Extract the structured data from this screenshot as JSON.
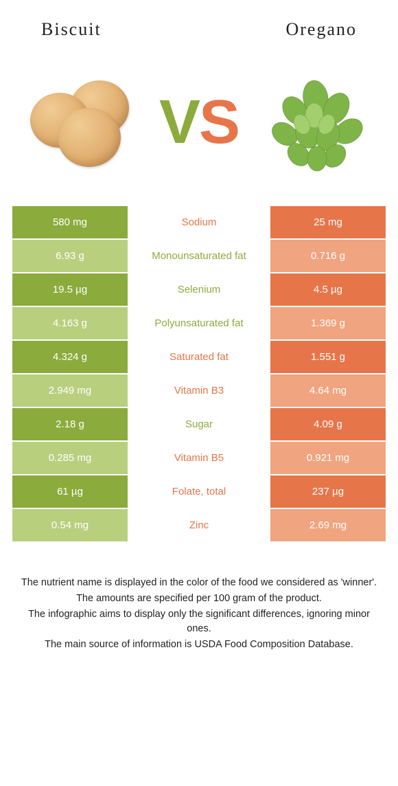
{
  "colors": {
    "green": "#8bab3c",
    "green_light": "#b8cf7e",
    "orange": "#e7754a",
    "orange_light": "#f0a47f",
    "white": "#ffffff",
    "text": "#222222"
  },
  "foods": {
    "left": {
      "name": "Biscuit"
    },
    "right": {
      "name": "Oregano"
    }
  },
  "vs": {
    "v": "V",
    "s": "S"
  },
  "rows": [
    {
      "nutrient": "Sodium",
      "left": "580 mg",
      "right": "25 mg",
      "winner": "right"
    },
    {
      "nutrient": "Monounsaturated fat",
      "left": "6.93 g",
      "right": "0.716 g",
      "winner": "left"
    },
    {
      "nutrient": "Selenium",
      "left": "19.5 µg",
      "right": "4.5 µg",
      "winner": "left"
    },
    {
      "nutrient": "Polyunsaturated fat",
      "left": "4.163 g",
      "right": "1.369 g",
      "winner": "left"
    },
    {
      "nutrient": "Saturated fat",
      "left": "4.324 g",
      "right": "1.551 g",
      "winner": "right"
    },
    {
      "nutrient": "Vitamin B3",
      "left": "2.949 mg",
      "right": "4.64 mg",
      "winner": "right"
    },
    {
      "nutrient": "Sugar",
      "left": "2.18 g",
      "right": "4.09 g",
      "winner": "left"
    },
    {
      "nutrient": "Vitamin B5",
      "left": "0.285 mg",
      "right": "0.921 mg",
      "winner": "right"
    },
    {
      "nutrient": "Folate, total",
      "left": "61 µg",
      "right": "237 µg",
      "winner": "right"
    },
    {
      "nutrient": "Zinc",
      "left": "0.54 mg",
      "right": "2.69 mg",
      "winner": "right"
    }
  ],
  "footer": {
    "line1": "The nutrient name is displayed in the color of the food we considered as 'winner'.",
    "line2": "The amounts are specified per 100 gram of the product.",
    "line3": "The infographic aims to display only the significant differences, ignoring minor ones.",
    "line4": "The main source of information is USDA Food Composition Database."
  }
}
